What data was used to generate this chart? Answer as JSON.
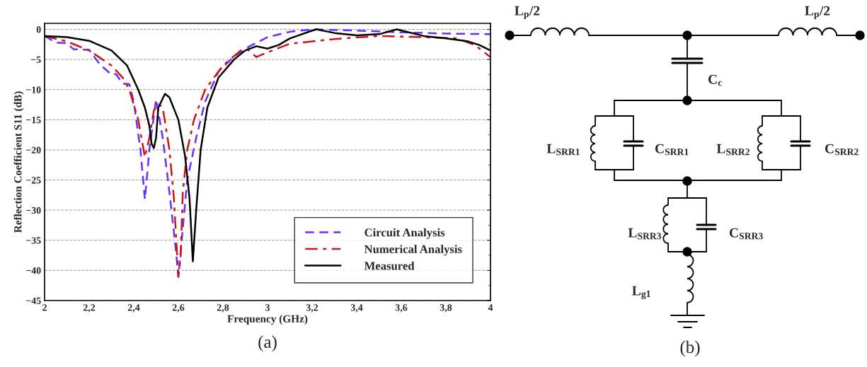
{
  "chart_data": [
    {
      "type": "line",
      "title": "(a)",
      "xlabel": "Frequency (GHz)",
      "ylabel": "Reflection Coefficient S11 (dB)",
      "xlim": [
        2,
        4
      ],
      "ylim": [
        -45,
        1
      ],
      "grid": "y",
      "legend": "bottom right",
      "xticks": [
        2,
        {
          "value": 2.2,
          "label": "2,2"
        },
        {
          "value": 2.4,
          "label": "2,4"
        },
        {
          "value": 2.6,
          "label": "2,6"
        },
        {
          "value": 2.8,
          "label": "2,8"
        },
        3,
        {
          "value": 3.2,
          "label": "3,2"
        },
        {
          "value": 3.4,
          "label": "3,4"
        },
        {
          "value": 3.6,
          "label": "3,6"
        },
        {
          "value": 3.8,
          "label": "3,8"
        },
        4
      ],
      "yticks": [
        0,
        {
          "value": -5,
          "label": "−5"
        },
        {
          "value": -10,
          "label": "−10"
        },
        {
          "value": -15,
          "label": "−15"
        },
        {
          "value": -20,
          "label": "−20"
        },
        {
          "value": -25,
          "label": "−25"
        },
        {
          "value": -30,
          "label": "−30"
        },
        {
          "value": -35,
          "label": "−35"
        },
        {
          "value": -40,
          "label": "−40"
        },
        {
          "value": -45,
          "label": "−45"
        }
      ],
      "series": [
        {
          "name": "Circuit Analysis",
          "color": "#6a2cff",
          "line_style": "dashed",
          "x": [
            2,
            2.05,
            2.1,
            2.13,
            2.2,
            2.25,
            2.3,
            2.32,
            2.35,
            2.38,
            2.4,
            2.43,
            2.45,
            2.47,
            2.5,
            2.53,
            2.56,
            2.59,
            2.6,
            2.62,
            2.64,
            2.68,
            2.72,
            2.78,
            2.85,
            2.92,
            3,
            3.1,
            3.2,
            3.4,
            3.6,
            3.8,
            4
          ],
          "values": [
            -1.1,
            -2.2,
            -2.3,
            -3.3,
            -3.4,
            -5.9,
            -7.5,
            -7.4,
            -9,
            -9.1,
            -12,
            -20,
            -28.2,
            -20,
            -11.6,
            -18,
            -27,
            -37,
            -41.1,
            -33,
            -25,
            -18,
            -12,
            -7,
            -4.5,
            -2.8,
            -1.3,
            -0.4,
            0,
            -0.2,
            -0.5,
            -0.7,
            -0.8
          ]
        },
        {
          "name": "Numerical Analysis",
          "color": "#cc1414",
          "line_style": "dashdot",
          "x": [
            2,
            2.1,
            2.2,
            2.3,
            2.35,
            2.38,
            2.42,
            2.45,
            2.47,
            2.49,
            2.51,
            2.53,
            2.56,
            2.58,
            2.6,
            2.61,
            2.62,
            2.64,
            2.67,
            2.72,
            2.8,
            2.88,
            2.91,
            2.95,
            3,
            3.1,
            3.3,
            3.5,
            3.7,
            3.85,
            3.93,
            4
          ],
          "values": [
            -1.1,
            -2,
            -3.5,
            -6,
            -8,
            -10,
            -15,
            -21.2,
            -18,
            -13.5,
            -12.3,
            -13,
            -20,
            -28,
            -41,
            -38,
            -27,
            -20,
            -15,
            -10,
            -6,
            -3.5,
            -3.3,
            -4.6,
            -3.8,
            -2.4,
            -1.6,
            -1.1,
            -1.3,
            -1.5,
            -2.6,
            -4.6
          ]
        },
        {
          "name": "Measured",
          "color": "#000000",
          "line_style": "solid",
          "x": [
            2,
            2.1,
            2.2,
            2.3,
            2.37,
            2.42,
            2.45,
            2.47,
            2.48,
            2.49,
            2.5,
            2.51,
            2.54,
            2.56,
            2.6,
            2.63,
            2.65,
            2.665,
            2.68,
            2.7,
            2.73,
            2.78,
            2.85,
            2.9,
            2.95,
            3,
            3.05,
            3.1,
            3.2,
            3.22,
            3.3,
            3.4,
            3.5,
            3.58,
            3.7,
            3.8,
            3.9,
            3.95,
            4
          ],
          "values": [
            -1.1,
            -1.3,
            -1.9,
            -3.5,
            -6,
            -10,
            -13,
            -16,
            -19,
            -19.7,
            -18,
            -13,
            -10.7,
            -11.3,
            -15,
            -21,
            -28,
            -38.5,
            -30,
            -20,
            -13,
            -8,
            -5,
            -3.5,
            -2.8,
            -3.2,
            -2.6,
            -1.5,
            -0.2,
            0,
            -0.6,
            -1,
            -0.8,
            0,
            -1.1,
            -1.5,
            -2,
            -2.6,
            -3.5
          ]
        }
      ]
    },
    {
      "type": "other",
      "title": "(b)",
      "annotations": [
        "L$_{p}$/2",
        "L$_{p}$/2",
        "C$_{c}$",
        "L$_{SRR1}$",
        "C$_{SRR1}$",
        "L$_{SRR2}$",
        "C$_{SRR2}$",
        "L$_{SRR3}$",
        "C$_{SRR3}$",
        "L$_{g1}$"
      ]
    }
  ]
}
